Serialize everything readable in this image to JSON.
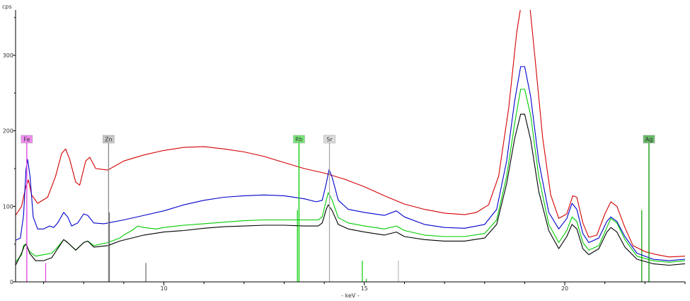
{
  "chart_data": {
    "type": "line",
    "title": "",
    "ylabel": "cps",
    "xlabel": "- keV -",
    "xlim": [
      6.3,
      23.0
    ],
    "ylim": [
      0,
      360
    ],
    "x_ticks": [
      10,
      15,
      20
    ],
    "y_ticks": [
      0,
      100,
      200,
      300
    ],
    "grid": false,
    "series": [
      {
        "color": "#d40000",
        "points": [
          [
            6.3,
            88
          ],
          [
            6.45,
            100
          ],
          [
            6.55,
            125
          ],
          [
            6.62,
            135
          ],
          [
            6.7,
            115
          ],
          [
            6.85,
            104
          ],
          [
            7.1,
            112
          ],
          [
            7.3,
            140
          ],
          [
            7.45,
            170
          ],
          [
            7.55,
            176
          ],
          [
            7.65,
            162
          ],
          [
            7.8,
            132
          ],
          [
            7.9,
            128
          ],
          [
            8.05,
            160
          ],
          [
            8.15,
            165
          ],
          [
            8.3,
            150
          ],
          [
            8.6,
            148
          ],
          [
            9.0,
            160
          ],
          [
            9.5,
            168
          ],
          [
            10.0,
            174
          ],
          [
            10.5,
            178
          ],
          [
            11.0,
            179
          ],
          [
            11.5,
            176
          ],
          [
            12.0,
            172
          ],
          [
            12.5,
            166
          ],
          [
            13.0,
            158
          ],
          [
            13.5,
            150
          ],
          [
            14.0,
            144
          ],
          [
            14.5,
            136
          ],
          [
            15.0,
            126
          ],
          [
            15.5,
            114
          ],
          [
            16.0,
            103
          ],
          [
            16.5,
            96
          ],
          [
            17.0,
            91
          ],
          [
            17.5,
            89
          ],
          [
            17.8,
            92
          ],
          [
            18.1,
            102
          ],
          [
            18.35,
            140
          ],
          [
            18.6,
            230
          ],
          [
            18.8,
            330
          ],
          [
            18.95,
            380
          ],
          [
            19.1,
            380
          ],
          [
            19.25,
            300
          ],
          [
            19.45,
            190
          ],
          [
            19.65,
            115
          ],
          [
            19.85,
            84
          ],
          [
            20.05,
            90
          ],
          [
            20.2,
            114
          ],
          [
            20.3,
            112
          ],
          [
            20.45,
            78
          ],
          [
            20.6,
            59
          ],
          [
            20.8,
            62
          ],
          [
            21.0,
            90
          ],
          [
            21.15,
            106
          ],
          [
            21.3,
            100
          ],
          [
            21.5,
            72
          ],
          [
            21.7,
            48
          ],
          [
            22.0,
            40
          ],
          [
            22.3,
            36
          ],
          [
            22.6,
            33
          ],
          [
            23.0,
            34
          ]
        ]
      },
      {
        "color": "#0000cc",
        "points": [
          [
            6.3,
            55
          ],
          [
            6.42,
            58
          ],
          [
            6.5,
            88
          ],
          [
            6.56,
            148
          ],
          [
            6.6,
            162
          ],
          [
            6.66,
            140
          ],
          [
            6.74,
            86
          ],
          [
            6.85,
            70
          ],
          [
            7.0,
            70
          ],
          [
            7.15,
            74
          ],
          [
            7.25,
            72
          ],
          [
            7.35,
            78
          ],
          [
            7.5,
            92
          ],
          [
            7.6,
            86
          ],
          [
            7.7,
            74
          ],
          [
            7.85,
            78
          ],
          [
            8.0,
            90
          ],
          [
            8.1,
            88
          ],
          [
            8.25,
            78
          ],
          [
            8.5,
            77
          ],
          [
            9.0,
            82
          ],
          [
            9.5,
            88
          ],
          [
            10.0,
            94
          ],
          [
            10.5,
            102
          ],
          [
            11.0,
            108
          ],
          [
            11.5,
            112
          ],
          [
            12.0,
            114
          ],
          [
            12.5,
            115
          ],
          [
            13.0,
            114
          ],
          [
            13.5,
            110
          ],
          [
            13.8,
            106
          ],
          [
            13.95,
            108
          ],
          [
            14.05,
            130
          ],
          [
            14.12,
            149
          ],
          [
            14.2,
            138
          ],
          [
            14.35,
            108
          ],
          [
            14.6,
            96
          ],
          [
            15.0,
            92
          ],
          [
            15.5,
            88
          ],
          [
            15.8,
            94
          ],
          [
            16.0,
            86
          ],
          [
            16.5,
            76
          ],
          [
            17.0,
            72
          ],
          [
            17.5,
            71
          ],
          [
            18.0,
            76
          ],
          [
            18.3,
            96
          ],
          [
            18.55,
            160
          ],
          [
            18.75,
            240
          ],
          [
            18.9,
            285
          ],
          [
            19.0,
            285
          ],
          [
            19.15,
            245
          ],
          [
            19.35,
            160
          ],
          [
            19.6,
            92
          ],
          [
            19.85,
            70
          ],
          [
            20.05,
            84
          ],
          [
            20.18,
            104
          ],
          [
            20.3,
            96
          ],
          [
            20.45,
            64
          ],
          [
            20.6,
            52
          ],
          [
            20.85,
            58
          ],
          [
            21.05,
            80
          ],
          [
            21.15,
            86
          ],
          [
            21.3,
            80
          ],
          [
            21.5,
            60
          ],
          [
            21.8,
            38
          ],
          [
            22.2,
            30
          ],
          [
            22.6,
            28
          ],
          [
            23.0,
            30
          ]
        ]
      },
      {
        "color": "#00cc00",
        "points": [
          [
            6.3,
            26
          ],
          [
            6.45,
            36
          ],
          [
            6.5,
            48
          ],
          [
            6.55,
            50
          ],
          [
            6.65,
            40
          ],
          [
            6.8,
            34
          ],
          [
            7.0,
            36
          ],
          [
            7.2,
            38
          ],
          [
            7.35,
            46
          ],
          [
            7.5,
            56
          ],
          [
            7.6,
            52
          ],
          [
            7.8,
            42
          ],
          [
            8.0,
            52
          ],
          [
            8.1,
            54
          ],
          [
            8.25,
            48
          ],
          [
            8.6,
            52
          ],
          [
            8.9,
            58
          ],
          [
            9.0,
            62
          ],
          [
            9.2,
            68
          ],
          [
            9.35,
            74
          ],
          [
            9.5,
            72
          ],
          [
            9.8,
            70
          ],
          [
            10.0,
            72
          ],
          [
            10.5,
            75
          ],
          [
            11.0,
            77
          ],
          [
            11.5,
            79
          ],
          [
            12.0,
            81
          ],
          [
            12.5,
            82
          ],
          [
            13.0,
            82
          ],
          [
            13.5,
            82
          ],
          [
            13.85,
            82
          ],
          [
            13.95,
            86
          ],
          [
            14.05,
            108
          ],
          [
            14.1,
            118
          ],
          [
            14.2,
            108
          ],
          [
            14.35,
            85
          ],
          [
            14.6,
            78
          ],
          [
            15.0,
            74
          ],
          [
            15.5,
            70
          ],
          [
            15.8,
            74
          ],
          [
            16.0,
            68
          ],
          [
            16.5,
            62
          ],
          [
            17.0,
            60
          ],
          [
            17.5,
            60
          ],
          [
            18.0,
            64
          ],
          [
            18.3,
            82
          ],
          [
            18.55,
            140
          ],
          [
            18.75,
            210
          ],
          [
            18.9,
            255
          ],
          [
            19.0,
            255
          ],
          [
            19.15,
            220
          ],
          [
            19.35,
            140
          ],
          [
            19.6,
            76
          ],
          [
            19.85,
            52
          ],
          [
            20.05,
            68
          ],
          [
            20.18,
            86
          ],
          [
            20.3,
            80
          ],
          [
            20.45,
            52
          ],
          [
            20.6,
            42
          ],
          [
            20.85,
            48
          ],
          [
            21.05,
            72
          ],
          [
            21.15,
            84
          ],
          [
            21.3,
            78
          ],
          [
            21.5,
            56
          ],
          [
            21.8,
            34
          ],
          [
            22.2,
            28
          ],
          [
            22.6,
            26
          ],
          [
            23.0,
            28
          ]
        ]
      },
      {
        "color": "#000000",
        "points": [
          [
            6.3,
            22
          ],
          [
            6.45,
            38
          ],
          [
            6.52,
            48
          ],
          [
            6.57,
            50
          ],
          [
            6.65,
            38
          ],
          [
            6.8,
            28
          ],
          [
            7.0,
            28
          ],
          [
            7.2,
            32
          ],
          [
            7.35,
            44
          ],
          [
            7.5,
            56
          ],
          [
            7.6,
            52
          ],
          [
            7.8,
            42
          ],
          [
            8.0,
            52
          ],
          [
            8.1,
            54
          ],
          [
            8.25,
            46
          ],
          [
            8.6,
            48
          ],
          [
            8.9,
            54
          ],
          [
            9.2,
            58
          ],
          [
            9.5,
            62
          ],
          [
            10.0,
            66
          ],
          [
            10.5,
            68
          ],
          [
            11.0,
            71
          ],
          [
            11.5,
            73
          ],
          [
            12.0,
            74
          ],
          [
            12.5,
            75
          ],
          [
            13.0,
            75
          ],
          [
            13.5,
            74
          ],
          [
            13.85,
            74
          ],
          [
            13.95,
            78
          ],
          [
            14.05,
            96
          ],
          [
            14.1,
            102
          ],
          [
            14.2,
            94
          ],
          [
            14.35,
            76
          ],
          [
            14.6,
            70
          ],
          [
            15.0,
            66
          ],
          [
            15.5,
            62
          ],
          [
            15.8,
            66
          ],
          [
            16.0,
            60
          ],
          [
            16.5,
            56
          ],
          [
            17.0,
            54
          ],
          [
            17.5,
            54
          ],
          [
            18.0,
            58
          ],
          [
            18.3,
            76
          ],
          [
            18.55,
            130
          ],
          [
            18.75,
            190
          ],
          [
            18.9,
            222
          ],
          [
            19.0,
            222
          ],
          [
            19.15,
            188
          ],
          [
            19.35,
            120
          ],
          [
            19.6,
            68
          ],
          [
            19.85,
            44
          ],
          [
            20.05,
            60
          ],
          [
            20.18,
            76
          ],
          [
            20.3,
            70
          ],
          [
            20.45,
            44
          ],
          [
            20.6,
            36
          ],
          [
            20.85,
            44
          ],
          [
            21.05,
            66
          ],
          [
            21.15,
            72
          ],
          [
            21.3,
            66
          ],
          [
            21.5,
            46
          ],
          [
            21.8,
            30
          ],
          [
            22.2,
            24
          ],
          [
            22.6,
            22
          ],
          [
            23.0,
            24
          ]
        ]
      }
    ],
    "element_markers": [
      {
        "label": "Fe",
        "x": 6.58,
        "color": "#e040e0",
        "bg": "#f08cf0"
      },
      {
        "label": "Zn",
        "x": 8.62,
        "color": "#888888",
        "bg": "#c8c8c8"
      },
      {
        "label": "Rb",
        "x": 13.37,
        "color": "#00cc00",
        "bg": "#78e878"
      },
      {
        "label": "Sr",
        "x": 14.13,
        "color": "#aaaaaa",
        "bg": "#dcdcdc"
      },
      {
        "label": "Ag",
        "x": 22.1,
        "color": "#009900",
        "bg": "#66bb66"
      }
    ],
    "reference_lines": [
      {
        "x": 7.05,
        "h": 25,
        "color": "#e040e0"
      },
      {
        "x": 8.64,
        "h": 92,
        "color": "#666666"
      },
      {
        "x": 9.55,
        "h": 25,
        "color": "#666666"
      },
      {
        "x": 13.33,
        "h": 95,
        "color": "#00cc00"
      },
      {
        "x": 14.95,
        "h": 28,
        "color": "#00cc00"
      },
      {
        "x": 15.05,
        "h": 4,
        "color": "#00cc00"
      },
      {
        "x": 15.85,
        "h": 28,
        "color": "#bbbbbb"
      },
      {
        "x": 21.92,
        "h": 95,
        "color": "#009900"
      }
    ]
  }
}
